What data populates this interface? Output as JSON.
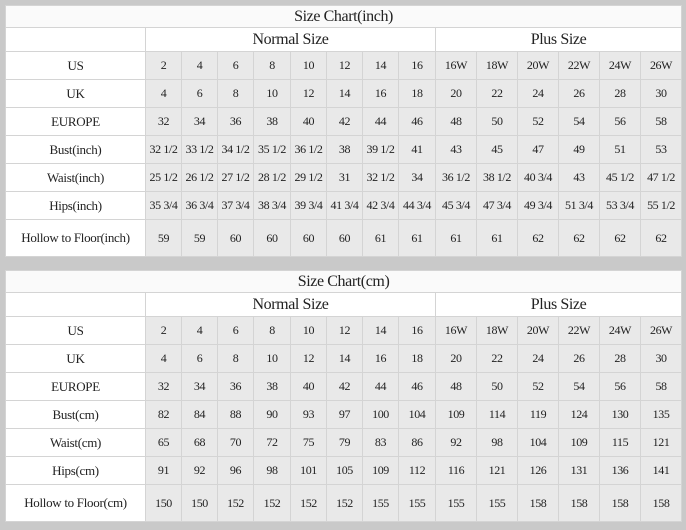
{
  "tables": [
    {
      "title": "Size Chart(inch)",
      "normal_label": "Normal Size",
      "plus_label": "Plus Size",
      "rows": [
        {
          "label": "US",
          "values": [
            "2",
            "4",
            "6",
            "8",
            "10",
            "12",
            "14",
            "16",
            "16W",
            "18W",
            "20W",
            "22W",
            "24W",
            "26W"
          ]
        },
        {
          "label": "UK",
          "values": [
            "4",
            "6",
            "8",
            "10",
            "12",
            "14",
            "16",
            "18",
            "20",
            "22",
            "24",
            "26",
            "28",
            "30"
          ]
        },
        {
          "label": "EUROPE",
          "values": [
            "32",
            "34",
            "36",
            "38",
            "40",
            "42",
            "44",
            "46",
            "48",
            "50",
            "52",
            "54",
            "56",
            "58"
          ]
        },
        {
          "label": "Bust(inch)",
          "values": [
            "32 1/2",
            "33 1/2",
            "34 1/2",
            "35 1/2",
            "36 1/2",
            "38",
            "39 1/2",
            "41",
            "43",
            "45",
            "47",
            "49",
            "51",
            "53"
          ]
        },
        {
          "label": "Waist(inch)",
          "values": [
            "25 1/2",
            "26 1/2",
            "27 1/2",
            "28 1/2",
            "29 1/2",
            "31",
            "32 1/2",
            "34",
            "36 1/2",
            "38 1/2",
            "40 3/4",
            "43",
            "45 1/2",
            "47 1/2"
          ]
        },
        {
          "label": "Hips(inch)",
          "values": [
            "35 3/4",
            "36 3/4",
            "37 3/4",
            "38 3/4",
            "39 3/4",
            "41 3/4",
            "42 3/4",
            "44 3/4",
            "45 3/4",
            "47 3/4",
            "49 3/4",
            "51 3/4",
            "53 3/4",
            "55 1/2"
          ]
        },
        {
          "label": "Hollow to Floor(inch)",
          "values": [
            "59",
            "59",
            "60",
            "60",
            "60",
            "60",
            "61",
            "61",
            "61",
            "61",
            "62",
            "62",
            "62",
            "62"
          ]
        }
      ]
    },
    {
      "title": "Size Chart(cm)",
      "normal_label": "Normal Size",
      "plus_label": "Plus Size",
      "rows": [
        {
          "label": "US",
          "values": [
            "2",
            "4",
            "6",
            "8",
            "10",
            "12",
            "14",
            "16",
            "16W",
            "18W",
            "20W",
            "22W",
            "24W",
            "26W"
          ]
        },
        {
          "label": "UK",
          "values": [
            "4",
            "6",
            "8",
            "10",
            "12",
            "14",
            "16",
            "18",
            "20",
            "22",
            "24",
            "26",
            "28",
            "30"
          ]
        },
        {
          "label": "EUROPE",
          "values": [
            "32",
            "34",
            "36",
            "38",
            "40",
            "42",
            "44",
            "46",
            "48",
            "50",
            "52",
            "54",
            "56",
            "58"
          ]
        },
        {
          "label": "Bust(cm)",
          "values": [
            "82",
            "84",
            "88",
            "90",
            "93",
            "97",
            "100",
            "104",
            "109",
            "114",
            "119",
            "124",
            "130",
            "135"
          ]
        },
        {
          "label": "Waist(cm)",
          "values": [
            "65",
            "68",
            "70",
            "72",
            "75",
            "79",
            "83",
            "86",
            "92",
            "98",
            "104",
            "109",
            "115",
            "121"
          ]
        },
        {
          "label": "Hips(cm)",
          "values": [
            "91",
            "92",
            "96",
            "98",
            "101",
            "105",
            "109",
            "112",
            "116",
            "121",
            "126",
            "131",
            "136",
            "141"
          ]
        },
        {
          "label": "Hollow to Floor(cm)",
          "values": [
            "150",
            "150",
            "152",
            "152",
            "152",
            "152",
            "155",
            "155",
            "155",
            "155",
            "158",
            "158",
            "158",
            "158"
          ]
        }
      ]
    }
  ]
}
